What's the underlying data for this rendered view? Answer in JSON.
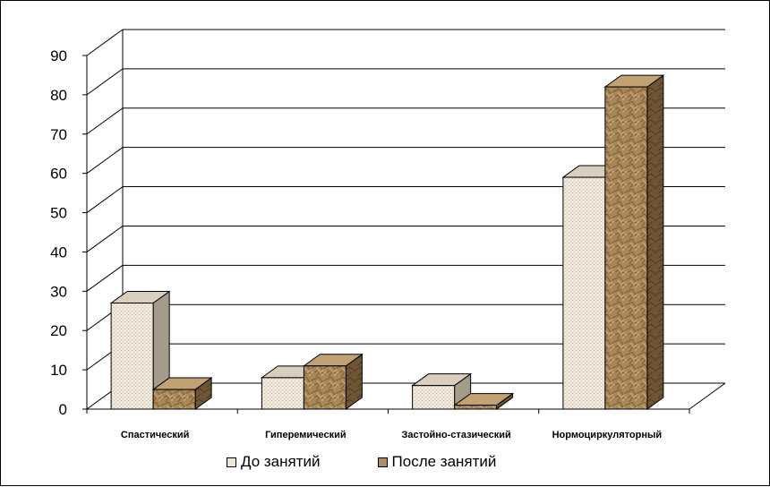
{
  "chart_data": {
    "type": "bar",
    "categories": [
      "Спастический",
      "Гиперемический",
      "Застойно-стазический",
      "Нормоциркуляторный"
    ],
    "series": [
      {
        "name": "До занятий",
        "values": [
          27,
          8,
          6,
          59
        ]
      },
      {
        "name": "После занятий",
        "values": [
          5,
          11,
          1,
          82
        ]
      }
    ],
    "y_ticks": [
      "0",
      "10",
      "20",
      "30",
      "40",
      "50",
      "60",
      "70",
      "80",
      "90"
    ],
    "ylim": [
      0,
      90
    ],
    "grid": true,
    "legend_position": "bottom",
    "colors": {
      "series_before": "#ebe3d3",
      "series_before_side": "#a59b8a",
      "series_after": "#b08d60",
      "series_after_side": "#6e5436",
      "grid": "#000000"
    }
  }
}
